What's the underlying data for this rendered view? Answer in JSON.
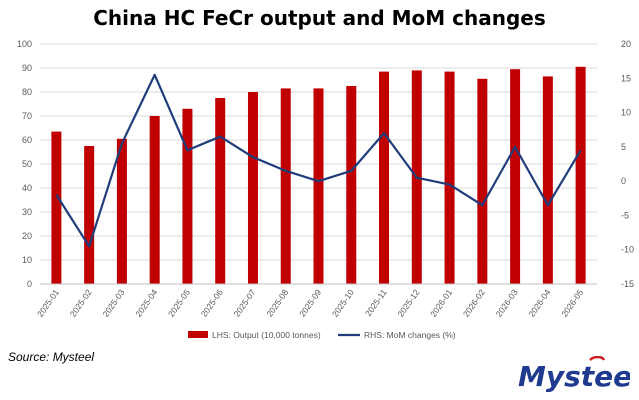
{
  "header": {
    "title": "China HC FeCr output and MoM changes"
  },
  "footer": {
    "source": "Source: Mysteel"
  },
  "logo": {
    "text": "Mysteel",
    "color": "#1f3b8f",
    "accent": "#cc1f1f"
  },
  "colors": {
    "bars": "#c00000",
    "line": "#1f3d7a",
    "grid": "#d9d9d9",
    "axis_text": "#595959"
  },
  "chart_data": {
    "type": "bar+line",
    "title": "China HC FeCr output and MoM changes",
    "categories": [
      "2025-01",
      "2025-02",
      "2025-03",
      "2025-04",
      "2025-05",
      "2025-06",
      "2025-07",
      "2025-08",
      "2025-09",
      "2025-10",
      "2025-11",
      "2025-12",
      "2026-01",
      "2026-02",
      "2026-03",
      "2026-04",
      "2026-05"
    ],
    "series": [
      {
        "name": "LHS: Output (10,000 tonnes)",
        "type": "bar",
        "axis": "left",
        "values": [
          63.5,
          57.5,
          60.5,
          70,
          73,
          77.5,
          80,
          81.5,
          81.5,
          82.5,
          88.5,
          89,
          88.5,
          85.5,
          89.5,
          86.5,
          90.5
        ]
      },
      {
        "name": "RHS: MoM changes (%)",
        "type": "line",
        "axis": "right",
        "values": [
          -2,
          -9.5,
          5.5,
          15.5,
          4.5,
          6.5,
          3.5,
          1.5,
          0,
          1.5,
          7,
          0.5,
          -0.5,
          -3.5,
          5,
          -3.5,
          4.5
        ]
      }
    ],
    "y_left": {
      "min": 0,
      "max": 100,
      "step": 10,
      "ticks": [
        "0",
        "10",
        "20",
        "30",
        "40",
        "50",
        "60",
        "70",
        "80",
        "90",
        "100"
      ]
    },
    "y_right": {
      "min": -15,
      "max": 20,
      "step": 5,
      "ticks": [
        "-15",
        "-10",
        "-5",
        "0",
        "5",
        "10",
        "15",
        "20"
      ]
    },
    "grid": true,
    "legend_position": "bottom"
  }
}
